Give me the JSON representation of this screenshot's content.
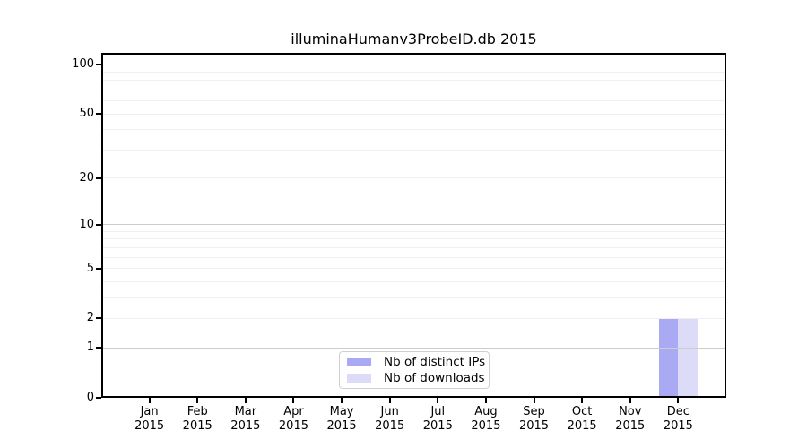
{
  "chart_data": {
    "type": "bar",
    "title": "illuminaHumanv3ProbeID.db 2015",
    "categories": [
      "Jan",
      "Feb",
      "Mar",
      "Apr",
      "May",
      "Jun",
      "Jul",
      "Aug",
      "Sep",
      "Oct",
      "Nov",
      "Dec"
    ],
    "category_year": "2015",
    "series": [
      {
        "name": "Nb of distinct IPs",
        "color": "#a9a9f4",
        "values": [
          0,
          0,
          0,
          0,
          0,
          0,
          0,
          0,
          0,
          0,
          0,
          2
        ]
      },
      {
        "name": "Nb of downloads",
        "color": "#dcdcf8",
        "values": [
          0,
          0,
          0,
          0,
          0,
          0,
          0,
          0,
          0,
          0,
          0,
          2
        ]
      }
    ],
    "xlabel": "",
    "ylabel": "",
    "y_scale": "log1p",
    "ylim": [
      0,
      118
    ],
    "y_ticks": [
      0,
      1,
      2,
      5,
      10,
      20,
      50,
      100
    ],
    "y_gridlines_major": [
      1,
      10,
      100
    ],
    "y_gridlines_minor": [
      2,
      3,
      4,
      5,
      6,
      7,
      8,
      9,
      20,
      30,
      40,
      50,
      60,
      70,
      80,
      90
    ],
    "grid": true,
    "legend_position": "lower center"
  },
  "colors": {
    "grid_major": "#cccccc",
    "grid_minor": "#efefef",
    "axis": "#000000",
    "background": "#ffffff",
    "legend_border": "#d0d0d0"
  }
}
